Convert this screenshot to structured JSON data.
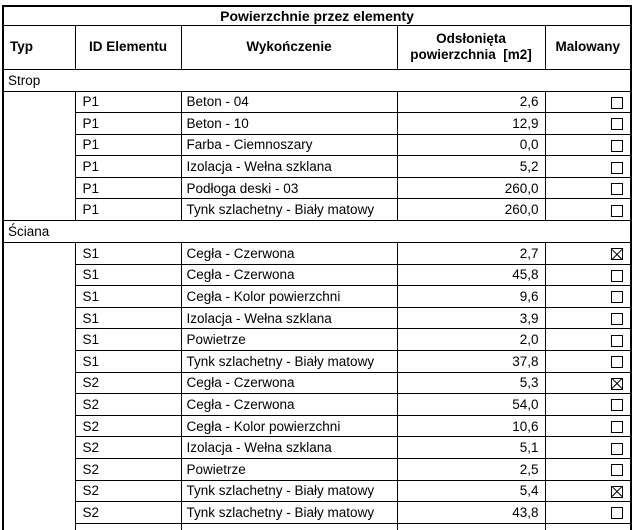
{
  "title": "Powierzchnie przez elementy",
  "columns": {
    "typ": "Typ",
    "element_id": "ID Elementu",
    "finish": "Wykończenie",
    "area_line1": "Odsłonięta",
    "area_line2": "powierzchnia  [m2]",
    "painted": "Malowany"
  },
  "groups": [
    {
      "name": "Strop",
      "rows": [
        {
          "id": "P1",
          "finish": "Beton - 04",
          "area": "2,6",
          "painted": false
        },
        {
          "id": "P1",
          "finish": "Beton - 10",
          "area": "12,9",
          "painted": false
        },
        {
          "id": "P1",
          "finish": "Farba - Ciemnoszary",
          "area": "0,0",
          "painted": false
        },
        {
          "id": "P1",
          "finish": "Izolacja - Wełna szklana",
          "area": "5,2",
          "painted": false
        },
        {
          "id": "P1",
          "finish": "Podłoga deski - 03",
          "area": "260,0",
          "painted": false
        },
        {
          "id": "P1",
          "finish": "Tynk szlachetny - Biały matowy",
          "area": "260,0",
          "painted": false
        }
      ]
    },
    {
      "name": "Ściana",
      "rows": [
        {
          "id": "S1",
          "finish": "Cegła - Czerwona",
          "area": "2,7",
          "painted": true
        },
        {
          "id": "S1",
          "finish": "Cegła - Czerwona",
          "area": "45,8",
          "painted": false
        },
        {
          "id": "S1",
          "finish": "Cegła - Kolor powierzchni",
          "area": "9,6",
          "painted": false
        },
        {
          "id": "S1",
          "finish": "Izolacja - Wełna szklana",
          "area": "3,9",
          "painted": false
        },
        {
          "id": "S1",
          "finish": "Powietrze",
          "area": "2,0",
          "painted": false
        },
        {
          "id": "S1",
          "finish": "Tynk szlachetny - Biały matowy",
          "area": "37,8",
          "painted": false
        },
        {
          "id": "S2",
          "finish": "Cegła - Czerwona",
          "area": "5,3",
          "painted": true
        },
        {
          "id": "S2",
          "finish": "Cegła - Czerwona",
          "area": "54,0",
          "painted": false
        },
        {
          "id": "S2",
          "finish": "Cegła - Kolor powierzchni",
          "area": "10,6",
          "painted": false
        },
        {
          "id": "S2",
          "finish": "Izolacja - Wełna szklana",
          "area": "5,1",
          "painted": false
        },
        {
          "id": "S2",
          "finish": "Powietrze",
          "area": "2,5",
          "painted": false
        },
        {
          "id": "S2",
          "finish": "Tynk szlachetny - Biały matowy",
          "area": "5,4",
          "painted": true
        },
        {
          "id": "S2",
          "finish": "Tynk szlachetny - Biały matowy",
          "area": "43,8",
          "painted": false
        }
      ]
    }
  ],
  "colors": {
    "border": "#000000",
    "text": "#000000",
    "background": "#ffffff"
  }
}
